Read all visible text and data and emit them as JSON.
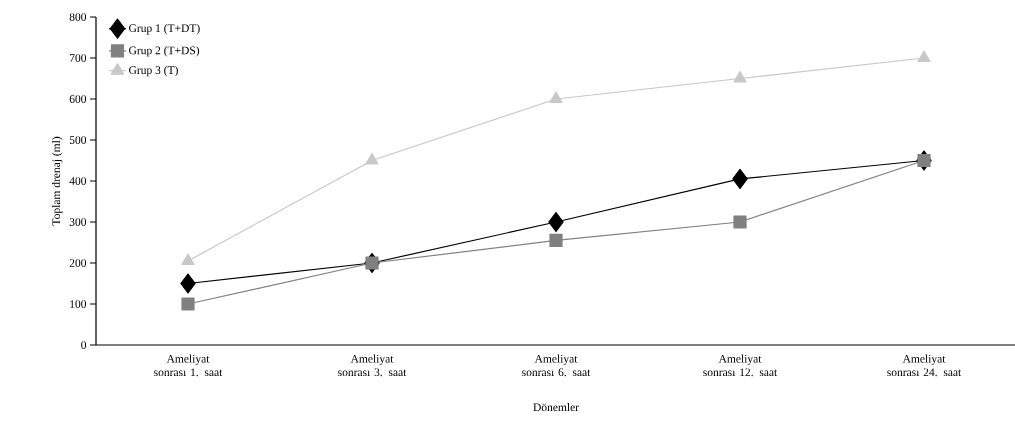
{
  "chart_data": {
    "type": "line",
    "xlabel": "Dönemler",
    "ylabel": "Toplam drenaj (ml)",
    "categories": [
      "Ameliyat sonrası 1. saat",
      "Ameliyat sonrası 3. saat",
      "Ameliyat sonrası 6. saat",
      "Ameliyat sonrası 12. saat",
      "Ameliyat sonrası 24. saat"
    ],
    "series": [
      {
        "name": "Grup 1 (T+DT)",
        "color": "#000000",
        "marker": "diamond",
        "values": [
          150,
          200,
          300,
          405,
          450
        ]
      },
      {
        "name": "Grup 2 (T+DS)",
        "color": "#808080",
        "marker": "square",
        "values": [
          100,
          200,
          255,
          300,
          450
        ]
      },
      {
        "name": "Grup 3 (T)",
        "color": "#c8c8c8",
        "marker": "triangle",
        "values": [
          205,
          450,
          600,
          650,
          700
        ]
      }
    ],
    "ylim": [
      0,
      800
    ],
    "yticks": [
      0,
      100,
      200,
      300,
      400,
      500,
      600,
      700,
      800
    ],
    "grid": false,
    "legend": "top left",
    "line_style": "solid"
  }
}
